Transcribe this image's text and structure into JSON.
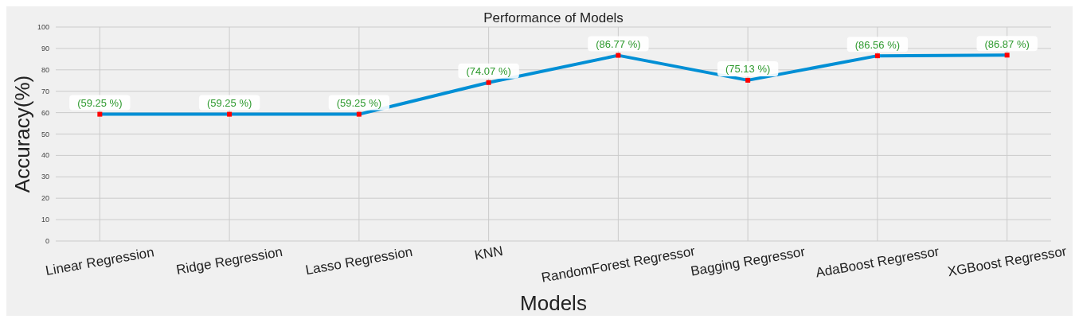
{
  "chart_data": {
    "type": "line",
    "title": "Performance of Models",
    "xlabel": "Models",
    "ylabel": "Accuracy(%)",
    "categories": [
      "Linear Regression",
      "Ridge Regression",
      "Lasso Regression",
      "KNN",
      "RandomForest Regressor",
      "Bagging Regressor",
      "AdaBoost Regressor",
      "XGBoost Regressor"
    ],
    "series": [
      {
        "color": "#008fd5",
        "values": [
          59.25,
          59.25,
          59.25,
          74.07,
          86.77,
          75.13,
          86.56,
          86.87
        ],
        "value_labels": [
          "(59.25 %)",
          "(59.25 %)",
          "(59.25 %)",
          "(74.07 %)",
          "(86.77 %)",
          "(75.13 %)",
          "(86.56 %)",
          "(86.87 %)"
        ]
      }
    ],
    "ylim": [
      0,
      100
    ],
    "yticks": [
      0,
      10,
      20,
      30,
      40,
      50,
      60,
      70,
      80,
      90,
      100
    ],
    "grid": true,
    "marker": "square",
    "line_style": "solid"
  }
}
